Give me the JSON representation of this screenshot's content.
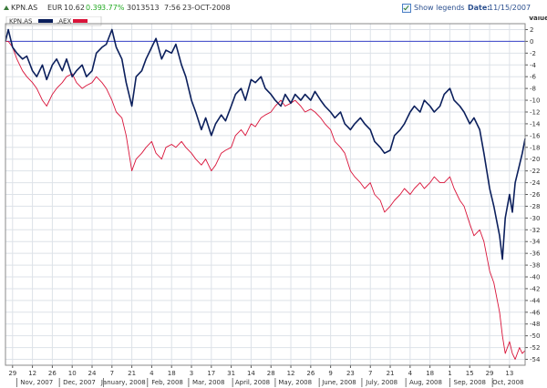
{
  "header": {
    "ticker": "KPN.AS",
    "currency": "EUR",
    "price": "10.62",
    "change": "0.39",
    "change_pct": "3.77%",
    "volume": "3013513",
    "time": "7:56",
    "date": "23-OCT-2008",
    "show_legends_label": "Show legends",
    "show_legends_checked": true,
    "date_label": "Date:",
    "date_value": "11/15/2007"
  },
  "colors": {
    "series_kpn": "#0b1f5c",
    "series_aex": "#d9143a",
    "zero_line": "#3b44c9",
    "grid": "#dde2e8",
    "header_up": "#22aa22"
  },
  "chart_data": {
    "type": "line",
    "title": "",
    "xlabel": "",
    "ylabel": "Value",
    "ylim": [
      -55,
      3
    ],
    "y_ticks": [
      2,
      0,
      -2,
      -4,
      -6,
      -8,
      -10,
      -12,
      -14,
      -16,
      -18,
      -20,
      -22,
      -24,
      -26,
      -28,
      -30,
      -32,
      -34,
      -36,
      -38,
      -40,
      -42,
      -44,
      -46,
      -48,
      -50,
      -52,
      -54
    ],
    "x_range": [
      "2007-10-24",
      "2008-10-24"
    ],
    "x_day_ticks": [
      {
        "date": "2007-10-29",
        "label": "29"
      },
      {
        "date": "2007-11-12",
        "label": "12"
      },
      {
        "date": "2007-11-26",
        "label": "26"
      },
      {
        "date": "2007-12-10",
        "label": "10"
      },
      {
        "date": "2007-12-24",
        "label": "24"
      },
      {
        "date": "2008-01-07",
        "label": "7"
      },
      {
        "date": "2008-01-21",
        "label": "21"
      },
      {
        "date": "2008-02-04",
        "label": "4"
      },
      {
        "date": "2008-02-18",
        "label": "18"
      },
      {
        "date": "2008-03-03",
        "label": "3"
      },
      {
        "date": "2008-03-17",
        "label": "17"
      },
      {
        "date": "2008-03-31",
        "label": "31"
      },
      {
        "date": "2008-04-14",
        "label": "14"
      },
      {
        "date": "2008-04-28",
        "label": "28"
      },
      {
        "date": "2008-05-12",
        "label": "12"
      },
      {
        "date": "2008-05-26",
        "label": "26"
      },
      {
        "date": "2008-06-09",
        "label": "9"
      },
      {
        "date": "2008-06-23",
        "label": "23"
      },
      {
        "date": "2008-07-07",
        "label": "7"
      },
      {
        "date": "2008-07-21",
        "label": "21"
      },
      {
        "date": "2008-08-04",
        "label": "4"
      },
      {
        "date": "2008-08-18",
        "label": "18"
      },
      {
        "date": "2008-09-01",
        "label": "1"
      },
      {
        "date": "2008-09-15",
        "label": "15"
      },
      {
        "date": "2008-09-29",
        "label": "29"
      },
      {
        "date": "2008-10-13",
        "label": "13"
      }
    ],
    "x_month_labels": [
      {
        "date": "2007-11-15",
        "label": "Nov, 2007"
      },
      {
        "date": "2007-12-15",
        "label": "Dec, 2007"
      },
      {
        "date": "2008-01-15",
        "label": "January, 2008"
      },
      {
        "date": "2008-02-15",
        "label": "Feb, 2008"
      },
      {
        "date": "2008-03-15",
        "label": "Mar, 2008"
      },
      {
        "date": "2008-04-15",
        "label": "April, 2008"
      },
      {
        "date": "2008-05-15",
        "label": "May, 2008"
      },
      {
        "date": "2008-06-15",
        "label": "June, 2008"
      },
      {
        "date": "2008-07-15",
        "label": "July, 2008"
      },
      {
        "date": "2008-08-15",
        "label": "Aug, 2008"
      },
      {
        "date": "2008-09-15",
        "label": "Sep, 2008"
      },
      {
        "date": "2008-10-12",
        "label": "Oct, 2008"
      }
    ],
    "legend": {
      "placement": "top-left",
      "entries": [
        "KPN.AS",
        ".AEX"
      ]
    },
    "grid": true,
    "series": [
      {
        "name": "KPN.AS",
        "points": [
          [
            "2007-10-24",
            0
          ],
          [
            "2007-10-26",
            2
          ],
          [
            "2007-10-29",
            -1
          ],
          [
            "2007-11-01",
            -2
          ],
          [
            "2007-11-05",
            -3
          ],
          [
            "2007-11-08",
            -2.5
          ],
          [
            "2007-11-12",
            -5
          ],
          [
            "2007-11-15",
            -6
          ],
          [
            "2007-11-19",
            -4
          ],
          [
            "2007-11-22",
            -6.5
          ],
          [
            "2007-11-26",
            -4
          ],
          [
            "2007-11-29",
            -3
          ],
          [
            "2007-12-03",
            -5
          ],
          [
            "2007-12-06",
            -3
          ],
          [
            "2007-12-10",
            -6
          ],
          [
            "2007-12-13",
            -5
          ],
          [
            "2007-12-17",
            -4
          ],
          [
            "2007-12-20",
            -6
          ],
          [
            "2007-12-24",
            -5
          ],
          [
            "2007-12-27",
            -2
          ],
          [
            "2007-12-31",
            -1
          ],
          [
            "2008-01-03",
            -0.5
          ],
          [
            "2008-01-07",
            2
          ],
          [
            "2008-01-10",
            -1
          ],
          [
            "2008-01-14",
            -3
          ],
          [
            "2008-01-17",
            -7
          ],
          [
            "2008-01-21",
            -11
          ],
          [
            "2008-01-24",
            -6
          ],
          [
            "2008-01-28",
            -5
          ],
          [
            "2008-01-31",
            -3
          ],
          [
            "2008-02-04",
            -1
          ],
          [
            "2008-02-07",
            0.5
          ],
          [
            "2008-02-11",
            -3
          ],
          [
            "2008-02-14",
            -1.5
          ],
          [
            "2008-02-18",
            -2
          ],
          [
            "2008-02-21",
            -0.5
          ],
          [
            "2008-02-25",
            -4
          ],
          [
            "2008-02-28",
            -6
          ],
          [
            "2008-03-03",
            -10
          ],
          [
            "2008-03-06",
            -12
          ],
          [
            "2008-03-10",
            -15
          ],
          [
            "2008-03-13",
            -13
          ],
          [
            "2008-03-17",
            -16
          ],
          [
            "2008-03-20",
            -14
          ],
          [
            "2008-03-24",
            -12.5
          ],
          [
            "2008-03-27",
            -13.5
          ],
          [
            "2008-03-31",
            -11
          ],
          [
            "2008-04-03",
            -9
          ],
          [
            "2008-04-07",
            -8
          ],
          [
            "2008-04-10",
            -10
          ],
          [
            "2008-04-14",
            -6.5
          ],
          [
            "2008-04-17",
            -7
          ],
          [
            "2008-04-21",
            -6
          ],
          [
            "2008-04-24",
            -8
          ],
          [
            "2008-04-28",
            -9
          ],
          [
            "2008-05-01",
            -10
          ],
          [
            "2008-05-05",
            -11
          ],
          [
            "2008-05-08",
            -9
          ],
          [
            "2008-05-12",
            -10.5
          ],
          [
            "2008-05-15",
            -9
          ],
          [
            "2008-05-19",
            -10
          ],
          [
            "2008-05-22",
            -9
          ],
          [
            "2008-05-26",
            -10
          ],
          [
            "2008-05-29",
            -8.5
          ],
          [
            "2008-06-02",
            -10
          ],
          [
            "2008-06-05",
            -11
          ],
          [
            "2008-06-09",
            -12
          ],
          [
            "2008-06-12",
            -13
          ],
          [
            "2008-06-16",
            -12
          ],
          [
            "2008-06-19",
            -14
          ],
          [
            "2008-06-23",
            -15
          ],
          [
            "2008-06-26",
            -14
          ],
          [
            "2008-06-30",
            -13
          ],
          [
            "2008-07-03",
            -14
          ],
          [
            "2008-07-07",
            -15
          ],
          [
            "2008-07-10",
            -17
          ],
          [
            "2008-07-14",
            -18
          ],
          [
            "2008-07-17",
            -19
          ],
          [
            "2008-07-21",
            -18.5
          ],
          [
            "2008-07-24",
            -16
          ],
          [
            "2008-07-28",
            -15
          ],
          [
            "2008-07-31",
            -14
          ],
          [
            "2008-08-04",
            -12
          ],
          [
            "2008-08-07",
            -11
          ],
          [
            "2008-08-11",
            -12
          ],
          [
            "2008-08-14",
            -10
          ],
          [
            "2008-08-18",
            -11
          ],
          [
            "2008-08-21",
            -12
          ],
          [
            "2008-08-25",
            -11
          ],
          [
            "2008-08-28",
            -9
          ],
          [
            "2008-09-01",
            -8
          ],
          [
            "2008-09-04",
            -10
          ],
          [
            "2008-09-08",
            -11
          ],
          [
            "2008-09-11",
            -12
          ],
          [
            "2008-09-15",
            -14
          ],
          [
            "2008-09-18",
            -13
          ],
          [
            "2008-09-22",
            -15
          ],
          [
            "2008-09-25",
            -19
          ],
          [
            "2008-09-29",
            -25
          ],
          [
            "2008-10-02",
            -28
          ],
          [
            "2008-10-06",
            -33
          ],
          [
            "2008-10-08",
            -37
          ],
          [
            "2008-10-10",
            -30
          ],
          [
            "2008-10-13",
            -26
          ],
          [
            "2008-10-15",
            -29
          ],
          [
            "2008-10-17",
            -24
          ],
          [
            "2008-10-20",
            -21
          ],
          [
            "2008-10-22",
            -19
          ],
          [
            "2008-10-24",
            -16.5
          ]
        ]
      },
      {
        "name": ".AEX",
        "points": [
          [
            "2007-10-24",
            0
          ],
          [
            "2007-10-26",
            0
          ],
          [
            "2007-10-29",
            -1
          ],
          [
            "2007-11-01",
            -3
          ],
          [
            "2007-11-05",
            -5
          ],
          [
            "2007-11-08",
            -6
          ],
          [
            "2007-11-12",
            -7
          ],
          [
            "2007-11-15",
            -8
          ],
          [
            "2007-11-19",
            -10
          ],
          [
            "2007-11-22",
            -11
          ],
          [
            "2007-11-26",
            -9
          ],
          [
            "2007-11-29",
            -8
          ],
          [
            "2007-12-03",
            -7
          ],
          [
            "2007-12-06",
            -6
          ],
          [
            "2007-12-10",
            -5.5
          ],
          [
            "2007-12-13",
            -7
          ],
          [
            "2007-12-17",
            -8
          ],
          [
            "2007-12-20",
            -7.5
          ],
          [
            "2007-12-24",
            -7
          ],
          [
            "2007-12-27",
            -6
          ],
          [
            "2007-12-31",
            -7
          ],
          [
            "2008-01-03",
            -8
          ],
          [
            "2008-01-07",
            -10
          ],
          [
            "2008-01-10",
            -12
          ],
          [
            "2008-01-14",
            -13
          ],
          [
            "2008-01-17",
            -16
          ],
          [
            "2008-01-21",
            -22
          ],
          [
            "2008-01-24",
            -20
          ],
          [
            "2008-01-28",
            -19
          ],
          [
            "2008-01-31",
            -18
          ],
          [
            "2008-02-04",
            -17
          ],
          [
            "2008-02-07",
            -19
          ],
          [
            "2008-02-11",
            -20
          ],
          [
            "2008-02-14",
            -18
          ],
          [
            "2008-02-18",
            -17.5
          ],
          [
            "2008-02-21",
            -18
          ],
          [
            "2008-02-25",
            -17
          ],
          [
            "2008-02-28",
            -18
          ],
          [
            "2008-03-03",
            -19
          ],
          [
            "2008-03-06",
            -20
          ],
          [
            "2008-03-10",
            -21
          ],
          [
            "2008-03-13",
            -20
          ],
          [
            "2008-03-17",
            -22
          ],
          [
            "2008-03-20",
            -21
          ],
          [
            "2008-03-24",
            -19
          ],
          [
            "2008-03-27",
            -18.5
          ],
          [
            "2008-03-31",
            -18
          ],
          [
            "2008-04-03",
            -16
          ],
          [
            "2008-04-07",
            -15
          ],
          [
            "2008-04-10",
            -16
          ],
          [
            "2008-04-14",
            -14
          ],
          [
            "2008-04-17",
            -14.5
          ],
          [
            "2008-04-21",
            -13
          ],
          [
            "2008-04-24",
            -12.5
          ],
          [
            "2008-04-28",
            -12
          ],
          [
            "2008-05-01",
            -11
          ],
          [
            "2008-05-05",
            -10
          ],
          [
            "2008-05-08",
            -11
          ],
          [
            "2008-05-12",
            -10.5
          ],
          [
            "2008-05-15",
            -10
          ],
          [
            "2008-05-19",
            -11
          ],
          [
            "2008-05-22",
            -12
          ],
          [
            "2008-05-26",
            -11.5
          ],
          [
            "2008-05-29",
            -12
          ],
          [
            "2008-06-02",
            -13
          ],
          [
            "2008-06-05",
            -14
          ],
          [
            "2008-06-09",
            -15
          ],
          [
            "2008-06-12",
            -17
          ],
          [
            "2008-06-16",
            -18
          ],
          [
            "2008-06-19",
            -19
          ],
          [
            "2008-06-23",
            -22
          ],
          [
            "2008-06-26",
            -23
          ],
          [
            "2008-06-30",
            -24
          ],
          [
            "2008-07-03",
            -25
          ],
          [
            "2008-07-07",
            -24
          ],
          [
            "2008-07-10",
            -26
          ],
          [
            "2008-07-14",
            -27
          ],
          [
            "2008-07-17",
            -29
          ],
          [
            "2008-07-21",
            -28
          ],
          [
            "2008-07-24",
            -27
          ],
          [
            "2008-07-28",
            -26
          ],
          [
            "2008-07-31",
            -25
          ],
          [
            "2008-08-04",
            -26
          ],
          [
            "2008-08-07",
            -25
          ],
          [
            "2008-08-11",
            -24
          ],
          [
            "2008-08-14",
            -25
          ],
          [
            "2008-08-18",
            -24
          ],
          [
            "2008-08-21",
            -23
          ],
          [
            "2008-08-25",
            -24
          ],
          [
            "2008-08-28",
            -24
          ],
          [
            "2008-09-01",
            -23
          ],
          [
            "2008-09-04",
            -25
          ],
          [
            "2008-09-08",
            -27
          ],
          [
            "2008-09-11",
            -28
          ],
          [
            "2008-09-15",
            -31
          ],
          [
            "2008-09-18",
            -33
          ],
          [
            "2008-09-22",
            -32
          ],
          [
            "2008-09-25",
            -34
          ],
          [
            "2008-09-29",
            -39
          ],
          [
            "2008-10-02",
            -41
          ],
          [
            "2008-10-06",
            -46
          ],
          [
            "2008-10-08",
            -50
          ],
          [
            "2008-10-10",
            -53
          ],
          [
            "2008-10-13",
            -51
          ],
          [
            "2008-10-15",
            -53
          ],
          [
            "2008-10-17",
            -54
          ],
          [
            "2008-10-20",
            -52
          ],
          [
            "2008-10-22",
            -53
          ],
          [
            "2008-10-24",
            -52.5
          ]
        ]
      }
    ]
  }
}
